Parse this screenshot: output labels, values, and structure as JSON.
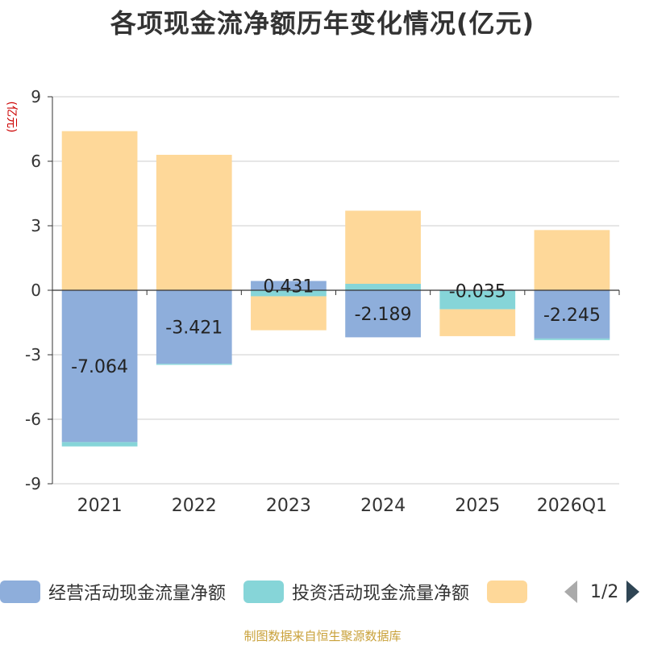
{
  "title": "各项现金流净额历年变化情况(亿元)",
  "source": "制图数据来自恒生聚源数据库",
  "legend_page": "1/2",
  "chart_data": {
    "type": "bar",
    "stacked": true,
    "title": "各项现金流净额历年变化情况(亿元)",
    "ylabel": "(亿元)",
    "categories": [
      "2021",
      "2022",
      "2023",
      "2024",
      "2025",
      "2026Q1"
    ],
    "ylim": [
      -9,
      9
    ],
    "yticks": [
      9,
      6,
      3,
      0,
      -3,
      -6,
      -9
    ],
    "grid": true,
    "legend_position": "bottom",
    "series": [
      {
        "name": "经营活动现金流量净额",
        "color": "#8eaedb",
        "values": [
          -7.064,
          -3.421,
          0.431,
          -2.189,
          -0.035,
          -2.245
        ]
      },
      {
        "name": "投资活动现金流量净额",
        "color": "#86d5d8",
        "values": [
          -0.2,
          -0.05,
          -0.28,
          0.3,
          -0.85,
          -0.07
        ]
      },
      {
        "name": "",
        "color": "#fed899",
        "values": [
          7.4,
          6.3,
          -1.58,
          3.4,
          -1.25,
          2.8
        ]
      }
    ],
    "data_labels": [
      "-7.064",
      "-3.421",
      "0.431",
      "-2.189",
      "-0.035",
      "-2.245"
    ]
  }
}
